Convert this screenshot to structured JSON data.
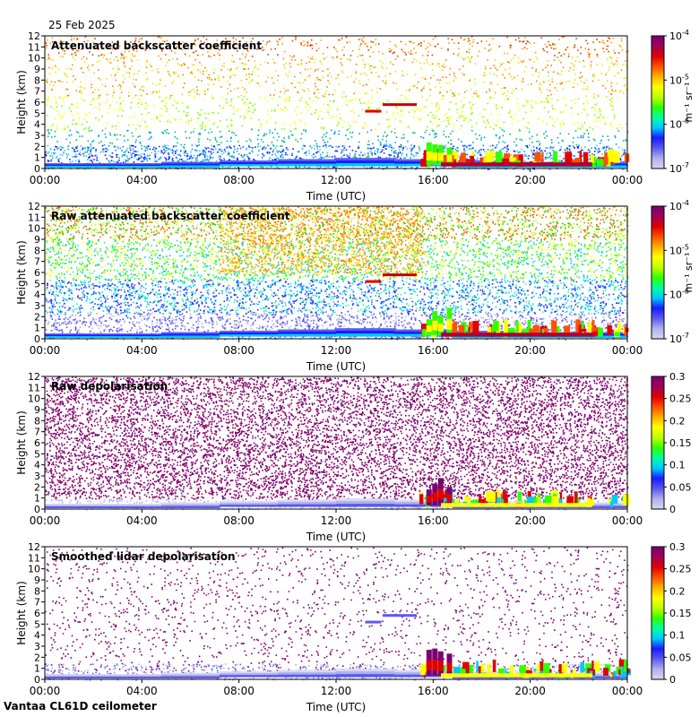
{
  "header": {
    "date": "25 Feb 2025"
  },
  "footer": {
    "site": "Vantaa CL61D ceilometer"
  },
  "colors": {
    "colormap": [
      "#d8d8f0",
      "#b0b0ec",
      "#5a5af0",
      "#1a1aff",
      "#00c8ff",
      "#00ffa0",
      "#30ff00",
      "#c0ff00",
      "#ffff00",
      "#ffb000",
      "#ff5000",
      "#e00000",
      "#a0005a",
      "#7a0070"
    ]
  },
  "chart_data": [
    {
      "type": "heatmap",
      "title": "Attenuated backscatter coefficient",
      "xlabel": "Time (UTC)",
      "ylabel": "Height (km)",
      "x_ticks": [
        "00:00",
        "04:00",
        "08:00",
        "12:00",
        "16:00",
        "20:00",
        "00:00"
      ],
      "y_ticks": [
        "0",
        "1",
        "2",
        "3",
        "4",
        "5",
        "6",
        "7",
        "8",
        "9",
        "10",
        "11",
        "12"
      ],
      "ylim": [
        0,
        12
      ],
      "colorbar": {
        "scale": "log",
        "unit_label": "m⁻¹ sr⁻¹",
        "ticks": [
          {
            "base": "10",
            "exp": "-7"
          },
          {
            "base": "10",
            "exp": "-6"
          },
          {
            "base": "10",
            "exp": "-5"
          },
          {
            "base": "10",
            "exp": "-4"
          }
        ]
      }
    },
    {
      "type": "heatmap",
      "title": "Raw attenuated backscatter coefficient",
      "xlabel": "Time (UTC)",
      "ylabel": "Height (km)",
      "x_ticks": [
        "00:00",
        "04:00",
        "08:00",
        "12:00",
        "16:00",
        "20:00",
        "00:00"
      ],
      "y_ticks": [
        "0",
        "1",
        "2",
        "3",
        "4",
        "5",
        "6",
        "7",
        "8",
        "9",
        "10",
        "11",
        "12"
      ],
      "ylim": [
        0,
        12
      ],
      "colorbar": {
        "scale": "log",
        "unit_label": "m⁻¹ sr⁻¹",
        "ticks": [
          {
            "base": "10",
            "exp": "-7"
          },
          {
            "base": "10",
            "exp": "-6"
          },
          {
            "base": "10",
            "exp": "-5"
          },
          {
            "base": "10",
            "exp": "-4"
          }
        ]
      }
    },
    {
      "type": "heatmap",
      "title": "Raw depolarisation",
      "xlabel": "Time (UTC)",
      "ylabel": "Height (km)",
      "x_ticks": [
        "00:00",
        "04:00",
        "08:00",
        "12:00",
        "16:00",
        "20:00",
        "00:00"
      ],
      "y_ticks": [
        "0",
        "1",
        "2",
        "3",
        "4",
        "5",
        "6",
        "7",
        "8",
        "9",
        "10",
        "11",
        "12"
      ],
      "ylim": [
        0,
        12
      ],
      "colorbar": {
        "scale": "linear",
        "unit_label": "",
        "ticks": [
          {
            "base": "0",
            "exp": ""
          },
          {
            "base": "0.05",
            "exp": ""
          },
          {
            "base": "0.1",
            "exp": ""
          },
          {
            "base": "0.15",
            "exp": ""
          },
          {
            "base": "0.2",
            "exp": ""
          },
          {
            "base": "0.25",
            "exp": ""
          },
          {
            "base": "0.3",
            "exp": ""
          }
        ]
      }
    },
    {
      "type": "heatmap",
      "title": "Smoothed lidar depolarisation",
      "xlabel": "Time (UTC)",
      "ylabel": "Height (km)",
      "x_ticks": [
        "00:00",
        "04:00",
        "08:00",
        "12:00",
        "16:00",
        "20:00",
        "00:00"
      ],
      "y_ticks": [
        "0",
        "1",
        "2",
        "3",
        "4",
        "5",
        "6",
        "7",
        "8",
        "9",
        "10",
        "11",
        "12"
      ],
      "ylim": [
        0,
        12
      ],
      "colorbar": {
        "scale": "linear",
        "unit_label": "",
        "ticks": [
          {
            "base": "0",
            "exp": ""
          },
          {
            "base": "0.05",
            "exp": ""
          },
          {
            "base": "0.1",
            "exp": ""
          },
          {
            "base": "0.15",
            "exp": ""
          },
          {
            "base": "0.2",
            "exp": ""
          },
          {
            "base": "0.25",
            "exp": ""
          },
          {
            "base": "0.3",
            "exp": ""
          }
        ]
      }
    }
  ]
}
